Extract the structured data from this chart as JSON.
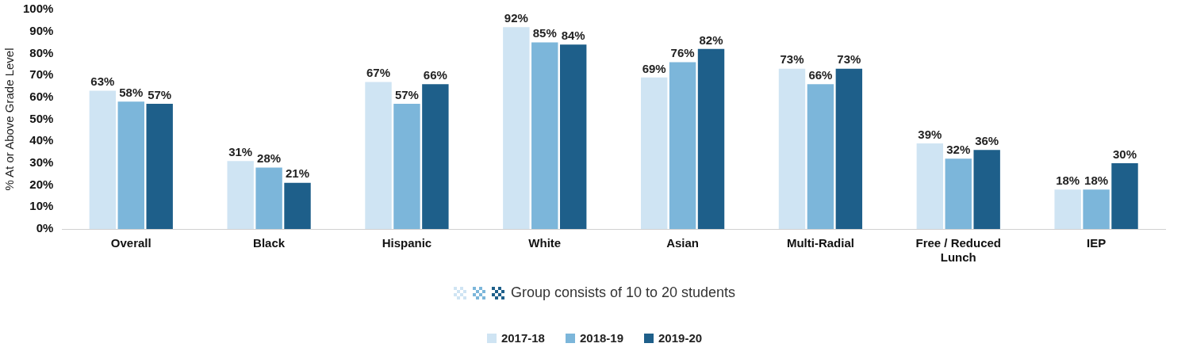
{
  "chart_data": {
    "type": "bar",
    "ylabel": "% At or Above Grade Level",
    "categories": [
      "Overall",
      "Black",
      "Hispanic",
      "White",
      "Asian",
      "Multi-Radial",
      "Free / Reduced Lunch",
      "IEP"
    ],
    "series": [
      {
        "name": "2017-18",
        "color": "#cfe4f3",
        "values": [
          63,
          31,
          67,
          92,
          69,
          73,
          39,
          18
        ],
        "value_labels": [
          "63%",
          "31%",
          "67%",
          "92%",
          "69%",
          "73%",
          "39%",
          "18%"
        ]
      },
      {
        "name": "2018-19",
        "color": "#7cb6da",
        "values": [
          58,
          28,
          57,
          85,
          76,
          66,
          32,
          18
        ],
        "value_labels": [
          "58%",
          "28%",
          "57%",
          "85%",
          "76%",
          "66%",
          "32%",
          "18%"
        ]
      },
      {
        "name": "2019-20",
        "color": "#1e5f8a",
        "values": [
          57,
          21,
          66,
          84,
          82,
          73,
          36,
          30
        ],
        "value_labels": [
          "57%",
          "21%",
          "66%",
          "84%",
          "82%",
          "73%",
          "36%",
          "30%"
        ]
      }
    ],
    "ylim": [
      0,
      100
    ],
    "yticks": [
      {
        "value": 0,
        "label": "0%"
      },
      {
        "value": 10,
        "label": "10%"
      },
      {
        "value": 20,
        "label": "20%"
      },
      {
        "value": 30,
        "label": "30%"
      },
      {
        "value": 40,
        "label": "40%"
      },
      {
        "value": 50,
        "label": "50%"
      },
      {
        "value": 60,
        "label": "60%"
      },
      {
        "value": 70,
        "label": "70%"
      },
      {
        "value": 80,
        "label": "80%"
      },
      {
        "value": 90,
        "label": "90%"
      },
      {
        "value": 100,
        "label": "100%"
      }
    ],
    "grid": false,
    "legend": "bottom",
    "annotations": [
      "Group consists of 10 to 20 students"
    ]
  }
}
